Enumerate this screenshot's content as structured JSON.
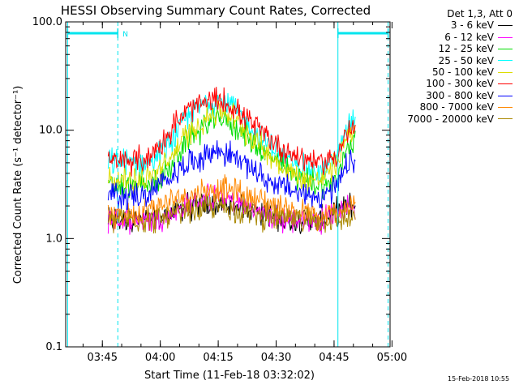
{
  "chart_data": {
    "type": "line",
    "title": "HESSI Observing Summary Count Rates, Corrected",
    "xlabel": "Start Time (11-Feb-18 03:32:02)",
    "ylabel": "Corrected Count Rate (s⁻¹ detector⁻¹)",
    "ylog": true,
    "ylim": [
      0.1,
      100
    ],
    "xlim_minutes": [
      3.5,
      87.5
    ],
    "x_ticks": [
      {
        "label": "03:45",
        "minute": 13
      },
      {
        "label": "04:00",
        "minute": 28
      },
      {
        "label": "04:15",
        "minute": 43
      },
      {
        "label": "04:30",
        "minute": 58
      },
      {
        "label": "04:45",
        "minute": 73
      },
      {
        "label": "05:00",
        "minute": 88
      }
    ],
    "y_ticks": [
      {
        "label": "100.0",
        "value": 100
      },
      {
        "label": "10.0",
        "value": 10
      },
      {
        "label": "1.0",
        "value": 1
      },
      {
        "label": "0.1",
        "value": 0.1
      }
    ],
    "legend_header": "Det 1,3, Att 0",
    "series": [
      {
        "name": "3 - 6 keV",
        "color": "#000000",
        "x": [
          15,
          28,
          35,
          43,
          50,
          58,
          70,
          77
        ],
        "y": [
          1.5,
          1.5,
          2,
          2,
          2,
          1.5,
          1.5,
          2
        ]
      },
      {
        "name": "6 - 12 keV",
        "color": "#ff00ff",
        "x": [
          15,
          28,
          35,
          43,
          50,
          58,
          70,
          77
        ],
        "y": [
          1.5,
          1.5,
          2,
          2.5,
          2,
          1.5,
          1.5,
          2
        ]
      },
      {
        "name": "12 - 25 keV",
        "color": "#00dd00",
        "x": [
          15,
          25,
          30,
          35,
          40,
          43,
          46,
          50,
          55,
          60,
          65,
          70,
          74,
          77
        ],
        "y": [
          3,
          3,
          4,
          8,
          11,
          13,
          12,
          9,
          6,
          4.5,
          3.5,
          3,
          3.5,
          8
        ]
      },
      {
        "name": "25 - 50 keV",
        "color": "#00ffff",
        "x": [
          15,
          25,
          30,
          35,
          40,
          43,
          46,
          50,
          55,
          60,
          65,
          70,
          74,
          77
        ],
        "y": [
          5,
          5,
          7,
          13,
          18,
          19,
          17,
          12,
          8,
          5.5,
          4.5,
          4,
          6,
          12
        ]
      },
      {
        "name": "50 - 100 keV",
        "color": "#dddd00",
        "x": [
          15,
          25,
          30,
          35,
          40,
          43,
          46,
          50,
          55,
          60,
          65,
          70,
          74,
          77
        ],
        "y": [
          3.5,
          3.5,
          5,
          9,
          13,
          15,
          14,
          10,
          6.5,
          4.5,
          3.5,
          3.5,
          5,
          10
        ]
      },
      {
        "name": "100 - 300 keV",
        "color": "#ff0000",
        "x": [
          15,
          25,
          30,
          35,
          40,
          43,
          46,
          50,
          55,
          60,
          65,
          70,
          74,
          77
        ],
        "y": [
          5,
          5.5,
          9,
          15,
          18,
          19,
          17,
          13,
          9,
          6.5,
          5.5,
          5,
          6,
          10
        ]
      },
      {
        "name": "300 - 800 keV",
        "color": "#0000ff",
        "x": [
          15,
          25,
          30,
          35,
          40,
          43,
          46,
          50,
          55,
          60,
          65,
          70,
          74,
          77
        ],
        "y": [
          2.5,
          2.5,
          3.5,
          5,
          6,
          6.5,
          6,
          5,
          3.5,
          3,
          2.5,
          2.5,
          3,
          5
        ]
      },
      {
        "name": "800 - 7000 keV",
        "color": "#ff8800",
        "x": [
          15,
          28,
          35,
          43,
          50,
          58,
          70,
          77
        ],
        "y": [
          1.5,
          2,
          2.5,
          3,
          2.5,
          2,
          1.5,
          2
        ]
      },
      {
        "name": "7000 - 20000 keV",
        "color": "#aa8800",
        "x": [
          15,
          28,
          43,
          58,
          77
        ],
        "y": [
          1.5,
          1.5,
          2,
          1.5,
          1.5
        ]
      }
    ],
    "night_intervals": [
      {
        "start": 4,
        "end": 17,
        "label": "N"
      },
      {
        "start": 74,
        "end": 87,
        "label": ""
      }
    ],
    "saa_lines_minutes": [
      4,
      74
    ],
    "eclipse_lines_minutes": [
      17,
      87
    ],
    "data_range_minutes": [
      14.5,
      78.5
    ]
  },
  "timestamp": "15-Feb-2018 10:55"
}
